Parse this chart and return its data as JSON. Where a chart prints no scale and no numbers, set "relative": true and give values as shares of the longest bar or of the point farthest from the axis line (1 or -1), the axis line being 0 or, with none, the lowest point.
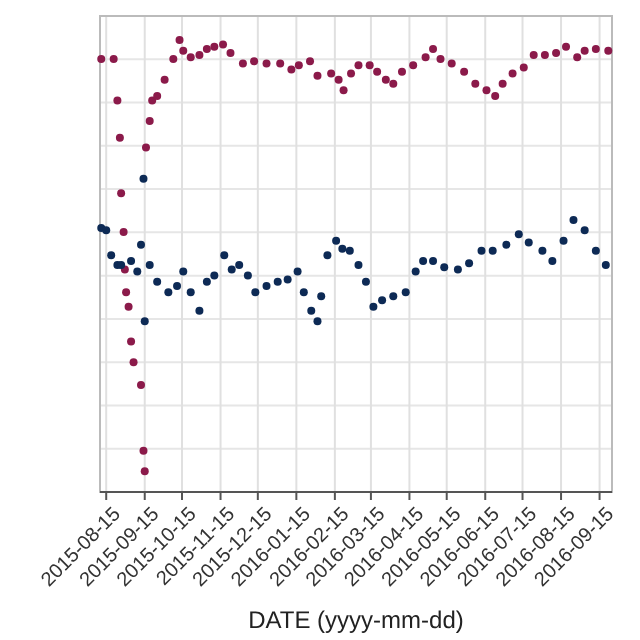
{
  "chart_data": {
    "type": "scatter",
    "relative": true,
    "xlabel": "DATE (yyyy-mm-dd)",
    "grid": true,
    "marker": "circle",
    "xlim": [
      "2015-08-10",
      "2016-09-25"
    ],
    "xticks": [
      "2015-08-15",
      "2015-09-15",
      "2015-10-15",
      "2015-11-15",
      "2015-12-15",
      "2016-01-15",
      "2016-02-15",
      "2016-03-15",
      "2016-04-15",
      "2016-05-15",
      "2016-06-15",
      "2016-07-15",
      "2016-08-15",
      "2016-09-15"
    ],
    "series": [
      {
        "color": "#8b1a4a",
        "x": [
          "2015-08-11",
          "2015-08-21",
          "2015-08-24",
          "2015-08-26",
          "2015-08-27",
          "2015-08-29",
          "2015-08-30",
          "2015-08-31",
          "2015-09-02",
          "2015-09-04",
          "2015-09-06",
          "2015-09-12",
          "2015-09-14",
          "2015-09-15",
          "2015-09-16",
          "2015-09-19",
          "2015-09-21",
          "2015-09-25",
          "2015-10-01",
          "2015-10-08",
          "2015-10-13",
          "2015-10-16",
          "2015-10-22",
          "2015-10-29",
          "2015-11-04",
          "2015-11-10",
          "2015-11-17",
          "2015-11-23",
          "2015-12-03",
          "2015-12-12",
          "2015-12-22",
          "2016-01-02",
          "2016-01-11",
          "2016-01-17",
          "2016-01-26",
          "2016-02-01",
          "2016-02-12",
          "2016-02-18",
          "2016-02-22",
          "2016-02-28",
          "2016-03-05",
          "2016-03-14",
          "2016-03-20",
          "2016-03-27",
          "2016-04-02",
          "2016-04-09",
          "2016-04-18",
          "2016-04-28",
          "2016-05-04",
          "2016-05-10",
          "2016-05-19",
          "2016-05-29",
          "2016-06-07",
          "2016-06-16",
          "2016-06-23",
          "2016-06-29",
          "2016-07-07",
          "2016-07-16",
          "2016-07-24",
          "2016-08-02",
          "2016-08-11",
          "2016-08-19",
          "2016-08-28",
          "2016-09-03",
          "2016-09-12",
          "2016-09-22"
        ],
        "values": [
          0.958,
          0.958,
          0.866,
          0.784,
          0.661,
          0.575,
          0.492,
          0.442,
          0.41,
          0.333,
          0.287,
          0.237,
          0.091,
          0.046,
          0.762,
          0.821,
          0.866,
          0.876,
          0.912,
          0.958,
          1,
          0.976,
          0.962,
          0.967,
          0.98,
          0.985,
          0.99,
          0.971,
          0.948,
          0.953,
          0.948,
          0.948,
          0.935,
          0.944,
          0.953,
          0.921,
          0.926,
          0.912,
          0.889,
          0.926,
          0.944,
          0.944,
          0.93,
          0.912,
          0.903,
          0.93,
          0.944,
          0.962,
          0.98,
          0.958,
          0.948,
          0.93,
          0.903,
          0.889,
          0.876,
          0.903,
          0.926,
          0.939,
          0.967,
          0.967,
          0.971,
          0.985,
          0.962,
          0.976,
          0.98,
          0.976
        ]
      },
      {
        "color": "#0d2a55",
        "x": [
          "2015-08-11",
          "2015-08-15",
          "2015-08-19",
          "2015-08-24",
          "2015-08-27",
          "2015-09-04",
          "2015-09-09",
          "2015-09-12",
          "2015-09-14",
          "2015-09-15",
          "2015-09-19",
          "2015-09-25",
          "2015-10-04",
          "2015-10-11",
          "2015-10-16",
          "2015-10-22",
          "2015-10-29",
          "2015-11-04",
          "2015-11-10",
          "2015-11-18",
          "2015-11-24",
          "2015-11-30",
          "2015-12-07",
          "2015-12-13",
          "2015-12-22",
          "2015-12-31",
          "2016-01-08",
          "2016-01-16",
          "2016-01-21",
          "2016-01-27",
          "2016-02-01",
          "2016-02-04",
          "2016-02-09",
          "2016-02-16",
          "2016-02-21",
          "2016-02-27",
          "2016-03-05",
          "2016-03-11",
          "2016-03-17",
          "2016-03-24",
          "2016-04-02",
          "2016-04-12",
          "2016-04-20",
          "2016-04-26",
          "2016-05-04",
          "2016-05-13",
          "2016-05-24",
          "2016-06-02",
          "2016-06-12",
          "2016-06-21",
          "2016-07-02",
          "2016-07-12",
          "2016-07-20",
          "2016-07-31",
          "2016-08-08",
          "2016-08-17",
          "2016-08-25",
          "2016-09-03",
          "2016-09-12",
          "2016-09-20"
        ],
        "values": [
          0.584,
          0.579,
          0.524,
          0.502,
          0.502,
          0.511,
          0.488,
          0.547,
          0.693,
          0.378,
          0.502,
          0.465,
          0.442,
          0.456,
          0.488,
          0.442,
          0.401,
          0.465,
          0.479,
          0.524,
          0.492,
          0.502,
          0.479,
          0.442,
          0.456,
          0.465,
          0.47,
          0.488,
          0.442,
          0.401,
          0.378,
          0.433,
          0.524,
          0.556,
          0.538,
          0.534,
          0.502,
          0.465,
          0.41,
          0.424,
          0.433,
          0.442,
          0.488,
          0.511,
          0.511,
          0.497,
          0.492,
          0.506,
          0.534,
          0.534,
          0.547,
          0.57,
          0.552,
          0.534,
          0.511,
          0.556,
          0.602,
          0.579,
          0.534,
          0.502
        ]
      }
    ]
  }
}
